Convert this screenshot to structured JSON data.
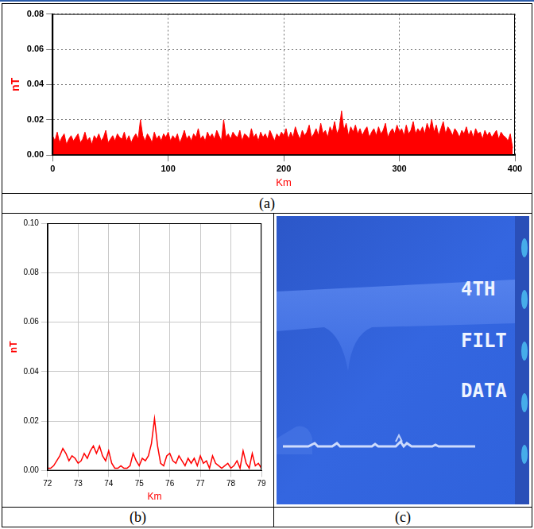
{
  "chart_data": [
    {
      "type": "area",
      "x_label": "Km",
      "y_label": "nT",
      "color": "#ff0000",
      "grid": true,
      "xlim": [
        0,
        400
      ],
      "xticks": [
        0,
        100,
        200,
        300,
        400
      ],
      "ylim": [
        0,
        0.08
      ],
      "yticks": [
        {
          "value": 0,
          "label": "0.00"
        },
        0.02,
        0.04,
        0.06,
        0.08
      ],
      "x": [
        0,
        2,
        4,
        6,
        8,
        10,
        12,
        14,
        16,
        18,
        20,
        22,
        24,
        26,
        28,
        30,
        32,
        34,
        36,
        38,
        40,
        42,
        44,
        46,
        48,
        50,
        52,
        54,
        56,
        58,
        60,
        62,
        64,
        66,
        68,
        70,
        72,
        74,
        76,
        78,
        80,
        82,
        84,
        86,
        88,
        90,
        92,
        94,
        96,
        98,
        100,
        102,
        104,
        106,
        108,
        110,
        112,
        114,
        116,
        118,
        120,
        122,
        124,
        126,
        128,
        130,
        132,
        134,
        136,
        138,
        140,
        142,
        144,
        146,
        148,
        150,
        152,
        154,
        156,
        158,
        160,
        162,
        164,
        166,
        168,
        170,
        172,
        174,
        176,
        178,
        180,
        182,
        184,
        186,
        188,
        190,
        192,
        194,
        196,
        198,
        200,
        202,
        204,
        206,
        208,
        210,
        212,
        214,
        216,
        218,
        220,
        222,
        224,
        226,
        228,
        230,
        232,
        234,
        236,
        238,
        240,
        242,
        244,
        246,
        248,
        250,
        252,
        254,
        256,
        258,
        260,
        262,
        264,
        266,
        268,
        270,
        272,
        274,
        276,
        278,
        280,
        282,
        284,
        286,
        288,
        290,
        292,
        294,
        296,
        298,
        300,
        302,
        304,
        306,
        308,
        310,
        312,
        314,
        316,
        318,
        320,
        322,
        324,
        326,
        328,
        330,
        332,
        334,
        336,
        338,
        340,
        342,
        344,
        346,
        348,
        350,
        352,
        354,
        356,
        358,
        360,
        362,
        364,
        366,
        368,
        370,
        372,
        374,
        376,
        378,
        380,
        382,
        384,
        386,
        388,
        390,
        392,
        394,
        396,
        398
      ],
      "values": [
        0.011,
        0.008,
        0.013,
        0.007,
        0.01,
        0.012,
        0.006,
        0.009,
        0.011,
        0.008,
        0.01,
        0.012,
        0.007,
        0.009,
        0.013,
        0.008,
        0.01,
        0.006,
        0.011,
        0.009,
        0.012,
        0.008,
        0.01,
        0.014,
        0.007,
        0.009,
        0.011,
        0.008,
        0.012,
        0.01,
        0.009,
        0.013,
        0.008,
        0.011,
        0.007,
        0.01,
        0.012,
        0.009,
        0.02,
        0.011,
        0.008,
        0.012,
        0.01,
        0.007,
        0.013,
        0.009,
        0.011,
        0.008,
        0.012,
        0.01,
        0.013,
        0.008,
        0.011,
        0.009,
        0.012,
        0.007,
        0.01,
        0.014,
        0.009,
        0.011,
        0.008,
        0.012,
        0.01,
        0.015,
        0.009,
        0.011,
        0.008,
        0.013,
        0.01,
        0.012,
        0.009,
        0.014,
        0.011,
        0.008,
        0.02,
        0.01,
        0.012,
        0.009,
        0.013,
        0.011,
        0.01,
        0.014,
        0.008,
        0.012,
        0.011,
        0.009,
        0.015,
        0.01,
        0.012,
        0.008,
        0.013,
        0.01,
        0.012,
        0.009,
        0.014,
        0.011,
        0.008,
        0.012,
        0.01,
        0.013,
        0.011,
        0.015,
        0.009,
        0.013,
        0.01,
        0.016,
        0.012,
        0.009,
        0.014,
        0.011,
        0.013,
        0.017,
        0.01,
        0.012,
        0.015,
        0.011,
        0.018,
        0.012,
        0.014,
        0.01,
        0.016,
        0.013,
        0.019,
        0.012,
        0.015,
        0.025,
        0.014,
        0.018,
        0.011,
        0.016,
        0.013,
        0.017,
        0.012,
        0.015,
        0.011,
        0.014,
        0.016,
        0.01,
        0.013,
        0.015,
        0.011,
        0.016,
        0.012,
        0.014,
        0.018,
        0.01,
        0.013,
        0.015,
        0.012,
        0.017,
        0.013,
        0.015,
        0.011,
        0.017,
        0.012,
        0.014,
        0.019,
        0.012,
        0.015,
        0.013,
        0.016,
        0.012,
        0.018,
        0.014,
        0.02,
        0.013,
        0.017,
        0.011,
        0.015,
        0.019,
        0.012,
        0.016,
        0.014,
        0.011,
        0.015,
        0.013,
        0.01,
        0.014,
        0.012,
        0.016,
        0.011,
        0.014,
        0.01,
        0.015,
        0.012,
        0.013,
        0.009,
        0.014,
        0.011,
        0.013,
        0.01,
        0.012,
        0.014,
        0.009,
        0.013,
        0.011,
        0.01,
        0.008,
        0.012,
        0.004
      ]
    },
    {
      "type": "line",
      "x_label": "Km",
      "y_label": "nT",
      "color": "#ff0000",
      "grid": true,
      "xlim": [
        72,
        79
      ],
      "xticks": [
        72,
        73,
        74,
        75,
        76,
        77,
        78,
        79
      ],
      "ylim": [
        0,
        0.1
      ],
      "yticks": [
        {
          "value": 0,
          "label": "0.00"
        },
        0.02,
        0.04,
        0.06,
        0.08,
        {
          "value": 0.1,
          "label": "0.10"
        }
      ],
      "x": [
        72.0,
        72.1,
        72.2,
        72.3,
        72.4,
        72.5,
        72.6,
        72.7,
        72.8,
        72.9,
        73.0,
        73.1,
        73.2,
        73.3,
        73.4,
        73.5,
        73.6,
        73.7,
        73.8,
        73.9,
        74.0,
        74.1,
        74.2,
        74.3,
        74.4,
        74.5,
        74.6,
        74.7,
        74.8,
        74.9,
        75.0,
        75.1,
        75.2,
        75.3,
        75.4,
        75.5,
        75.6,
        75.7,
        75.8,
        75.9,
        76.0,
        76.1,
        76.2,
        76.3,
        76.4,
        76.5,
        76.6,
        76.7,
        76.8,
        76.9,
        77.0,
        77.1,
        77.2,
        77.3,
        77.4,
        77.5,
        77.6,
        77.7,
        77.8,
        77.9,
        78.0,
        78.1,
        78.2,
        78.3,
        78.4,
        78.5,
        78.6,
        78.7,
        78.8,
        78.9,
        79.0
      ],
      "values": [
        0.001,
        0.001,
        0.002,
        0.004,
        0.006,
        0.009,
        0.007,
        0.004,
        0.006,
        0.005,
        0.003,
        0.004,
        0.007,
        0.005,
        0.008,
        0.01,
        0.007,
        0.01,
        0.006,
        0.004,
        0.008,
        0.003,
        0.001,
        0.001,
        0.002,
        0.001,
        0.001,
        0.002,
        0.007,
        0.004,
        0.002,
        0.005,
        0.004,
        0.006,
        0.011,
        0.021,
        0.01,
        0.003,
        0.002,
        0.006,
        0.007,
        0.004,
        0.003,
        0.006,
        0.004,
        0.002,
        0.005,
        0.003,
        0.005,
        0.002,
        0.006,
        0.003,
        0.004,
        0.001,
        0.006,
        0.003,
        0.002,
        0.001,
        0.002,
        0.003,
        0.001,
        0.002,
        0.004,
        0.001,
        0.008,
        0.003,
        0.001,
        0.007,
        0.002,
        0.003,
        0.001
      ]
    }
  ],
  "photo": {
    "texts": [
      "4TH",
      "FILT",
      "DATA"
    ]
  },
  "panel_labels": [
    "(a)",
    "(b)",
    "(c)"
  ]
}
